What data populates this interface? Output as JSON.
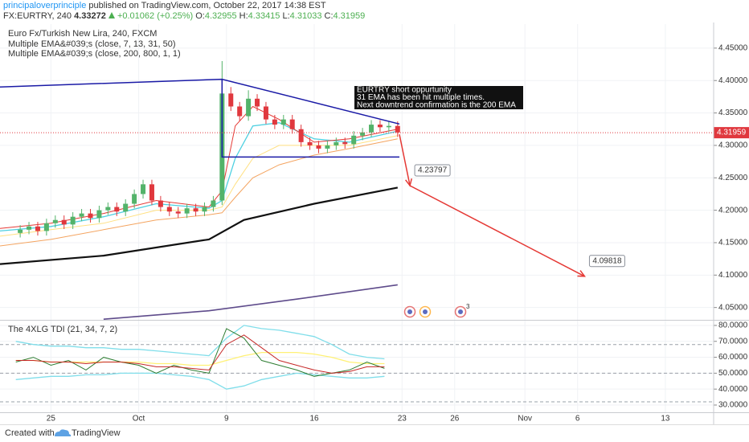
{
  "header": {
    "author": "principaloverprinciple",
    "published": "published on TradingView.com, October 22, 2017 14:38 EST",
    "symbol": "FX:EURTRY, 240",
    "price": "4.33272",
    "change": "+0.01062 (+0.25%)",
    "ohlc": [
      {
        "label": "O:",
        "value": 4.32955
      },
      {
        "label": "H:",
        "value": 4.33415
      },
      {
        "label": "L:",
        "value": 4.31033
      },
      {
        "label": "C:",
        "value": 4.31959
      }
    ]
  },
  "chart_data": [
    {
      "type": "candlestick",
      "title": "Euro Fx/Turkish New Lira, 240, FXCM",
      "legend": [
        "Multiple EMA&#039;s (close, 7, 13, 31, 50)",
        "Multiple EMA&#039;s (close, 200, 800, 1, 1)"
      ],
      "xlim": [
        -2.9,
        37.75
      ],
      "xticks": [
        {
          "value": 0,
          "label": "25"
        },
        {
          "value": 5,
          "label": "Oct"
        },
        {
          "value": 10,
          "label": "9"
        },
        {
          "value": 15,
          "label": "16"
        },
        {
          "value": 20,
          "label": "23"
        },
        {
          "value": 23,
          "label": "26"
        },
        {
          "value": 27,
          "label": "Nov"
        },
        {
          "value": 30,
          "label": "6"
        },
        {
          "value": 35,
          "label": "13"
        }
      ],
      "ylim": [
        4.031,
        4.487
      ],
      "yticks": [
        {
          "value": 4.05,
          "label": "4.05000"
        },
        {
          "value": 4.1,
          "label": "4.10000"
        },
        {
          "value": 4.15,
          "label": "4.15000"
        },
        {
          "value": 4.2,
          "label": "4.20000"
        },
        {
          "value": 4.25,
          "label": "4.25000"
        },
        {
          "value": 4.3,
          "label": "4.30000"
        },
        {
          "value": 4.35,
          "label": "4.35000"
        },
        {
          "value": 4.4,
          "label": "4.40000"
        },
        {
          "value": 4.45,
          "label": "4.45000"
        }
      ],
      "grid": true,
      "candle_colors": {
        "up": "#53b36a",
        "down": "#e0383e"
      },
      "x": [
        -1.75,
        -1.25,
        -0.75,
        -0.25,
        0.25,
        0.75,
        1.25,
        1.75,
        2.25,
        2.75,
        3.25,
        3.75,
        4.25,
        4.75,
        5.25,
        5.75,
        6.25,
        6.75,
        7.25,
        7.75,
        8.25,
        8.75,
        9.25,
        9.75,
        10.25,
        10.75,
        11.25,
        11.75,
        12.25,
        12.75,
        13.25,
        13.75,
        14.25,
        14.75,
        15.25,
        15.75,
        16.25,
        16.75,
        17.25,
        17.75,
        18.25,
        18.75,
        19.25,
        19.75
      ],
      "open": [
        4.165,
        4.17,
        4.175,
        4.168,
        4.18,
        4.185,
        4.178,
        4.19,
        4.195,
        4.188,
        4.2,
        4.205,
        4.198,
        4.21,
        4.225,
        4.24,
        4.215,
        4.205,
        4.198,
        4.195,
        4.203,
        4.198,
        4.205,
        4.215,
        4.38,
        4.36,
        4.345,
        4.372,
        4.36,
        4.34,
        4.332,
        4.34,
        4.325,
        4.305,
        4.3,
        4.295,
        4.3,
        4.305,
        4.302,
        4.315,
        4.32,
        4.332,
        4.328,
        4.33
      ],
      "high": [
        4.177,
        4.182,
        4.182,
        4.187,
        4.192,
        4.192,
        4.197,
        4.202,
        4.202,
        4.207,
        4.212,
        4.212,
        4.217,
        4.232,
        4.247,
        4.247,
        4.222,
        4.212,
        4.205,
        4.21,
        4.21,
        4.212,
        4.222,
        4.43,
        4.39,
        4.367,
        4.385,
        4.379,
        4.367,
        4.347,
        4.347,
        4.347,
        4.332,
        4.312,
        4.307,
        4.307,
        4.312,
        4.312,
        4.322,
        4.327,
        4.339,
        4.339,
        4.337,
        4.337
      ],
      "low": [
        4.158,
        4.163,
        4.161,
        4.161,
        4.173,
        4.171,
        4.171,
        4.183,
        4.181,
        4.181,
        4.193,
        4.191,
        4.191,
        4.203,
        4.218,
        4.208,
        4.198,
        4.191,
        4.188,
        4.188,
        4.191,
        4.191,
        4.198,
        4.208,
        4.353,
        4.338,
        4.338,
        4.353,
        4.333,
        4.325,
        4.325,
        4.318,
        4.298,
        4.293,
        4.288,
        4.288,
        4.293,
        4.295,
        4.295,
        4.308,
        4.313,
        4.321,
        4.321,
        4.313
      ],
      "close": [
        4.17,
        4.175,
        4.168,
        4.18,
        4.185,
        4.178,
        4.19,
        4.195,
        4.188,
        4.2,
        4.205,
        4.198,
        4.21,
        4.225,
        4.24,
        4.215,
        4.205,
        4.198,
        4.195,
        4.203,
        4.198,
        4.205,
        4.215,
        4.38,
        4.36,
        4.345,
        4.372,
        4.36,
        4.34,
        4.332,
        4.34,
        4.325,
        4.305,
        4.3,
        4.295,
        4.3,
        4.305,
        4.302,
        4.315,
        4.32,
        4.332,
        4.328,
        4.33,
        4.32
      ],
      "series": [
        {
          "color": "#f4a460",
          "width": 1,
          "x": [
            -2.9,
            0,
            3,
            6,
            9,
            9.75,
            10.5,
            11.5,
            13,
            15,
            17,
            19.75
          ],
          "values": [
            4.145,
            4.155,
            4.17,
            4.185,
            4.193,
            4.196,
            4.22,
            4.25,
            4.27,
            4.285,
            4.295,
            4.31
          ]
        },
        {
          "color": "#ffe082",
          "width": 1,
          "x": [
            -2.9,
            0,
            3,
            6,
            9,
            9.75,
            10.5,
            11.5,
            13,
            15,
            17,
            19.75
          ],
          "values": [
            4.16,
            4.17,
            4.18,
            4.2,
            4.2,
            4.205,
            4.24,
            4.28,
            4.3,
            4.3,
            4.3,
            4.315
          ]
        },
        {
          "color": "#4dd0e1",
          "width": 1.3,
          "x": [
            -2.9,
            0,
            3,
            6,
            9,
            9.75,
            10.5,
            11.5,
            13,
            15,
            17,
            19.75
          ],
          "values": [
            4.168,
            4.175,
            4.19,
            4.21,
            4.203,
            4.215,
            4.28,
            4.33,
            4.335,
            4.31,
            4.305,
            4.322
          ]
        },
        {
          "color": "#e53935",
          "width": 1,
          "x": [
            -2.9,
            0,
            3,
            6,
            9,
            9.75,
            10.5,
            11.5,
            13,
            15,
            17,
            19.75
          ],
          "values": [
            4.172,
            4.18,
            4.195,
            4.215,
            4.205,
            4.23,
            4.33,
            4.36,
            4.34,
            4.305,
            4.31,
            4.325
          ]
        },
        {
          "color": "#111111",
          "width": 2.2,
          "x": [
            -2.9,
            3,
            9,
            11,
            15,
            19.75
          ],
          "values": [
            4.117,
            4.13,
            4.155,
            4.185,
            4.21,
            4.235
          ]
        },
        {
          "color": "#5e4b8b",
          "width": 1.6,
          "x": [
            3,
            9,
            14,
            19.75
          ],
          "values": [
            4.032,
            4.045,
            4.063,
            4.085
          ]
        }
      ],
      "drawings": [
        {
          "color": "#1a1aa6",
          "x": [
            -2.9,
            9.75,
            19.85
          ],
          "y": [
            4.39,
            4.402,
            4.333
          ]
        },
        {
          "color": "#1a1aa6",
          "x": [
            9.75,
            9.75,
            19.85
          ],
          "y": [
            4.402,
            4.282,
            4.282
          ]
        },
        {
          "color": "#e53935",
          "arrow": true,
          "x": [
            19.85,
            20.45,
            30.4
          ],
          "y": [
            4.317,
            4.23797,
            4.09818
          ]
        }
      ],
      "target_labels": [
        {
          "drawing": 2,
          "point": 1
        },
        {
          "drawing": 2,
          "point": 2
        }
      ],
      "note": [
        "EURTRY short oppurtunity",
        "31 EMA has been hit multiple times.",
        "Next downtrend confirmation is the 200 EMA"
      ],
      "last_price": 4.31959,
      "event_badge": 3
    },
    {
      "type": "line",
      "title": "The 4XLG TDI (21, 34, 7, 2)",
      "ylim": [
        25.45,
        83
      ],
      "yticks": [
        {
          "value": 30,
          "label": "30.0000"
        },
        {
          "value": 40,
          "label": "40.0000"
        },
        {
          "value": 50,
          "label": "50.0000"
        },
        {
          "value": 60,
          "label": "60.0000"
        },
        {
          "value": 70,
          "label": "70.0000"
        },
        {
          "value": 80,
          "label": "80.0000"
        }
      ],
      "grid": true,
      "levels": [
        68,
        50,
        32
      ],
      "x": [
        -2,
        -1,
        0,
        1,
        2,
        3,
        4,
        5,
        6,
        7,
        8,
        9,
        10,
        11,
        12,
        13,
        14,
        15,
        16,
        17,
        18,
        19
      ],
      "series": [
        {
          "color": "#80deea",
          "width": 1.3,
          "values": [
            70,
            68,
            67,
            67,
            66,
            66,
            65,
            65,
            64,
            63,
            62,
            61,
            72,
            80,
            78,
            77,
            75,
            73,
            68,
            62,
            60,
            59
          ]
        },
        {
          "color": "#80deea",
          "width": 1.3,
          "values": [
            46,
            47,
            48,
            48,
            49,
            49,
            50,
            50,
            50,
            49,
            48,
            46,
            40,
            42,
            46,
            48,
            50,
            49,
            48,
            47,
            47,
            48
          ]
        },
        {
          "color": "#fff176",
          "width": 1.3,
          "values": [
            58,
            58,
            57,
            57,
            57,
            57,
            57,
            57,
            56,
            56,
            55,
            55,
            58,
            61,
            63,
            63,
            63,
            62,
            60,
            57,
            56,
            56
          ]
        },
        {
          "color": "#2e7d32",
          "width": 1,
          "values": [
            57,
            60,
            55,
            58,
            52,
            60,
            57,
            55,
            50,
            55,
            52,
            50,
            78,
            72,
            58,
            55,
            52,
            48,
            50,
            52,
            57,
            53
          ]
        },
        {
          "color": "#c62828",
          "width": 1,
          "values": [
            58,
            58,
            57,
            57,
            56,
            57,
            57,
            56,
            54,
            54,
            53,
            52,
            68,
            74,
            66,
            58,
            55,
            52,
            50,
            51,
            54,
            54
          ]
        }
      ]
    }
  ],
  "footer": {
    "created": "Created with",
    "brand": "TradingView"
  }
}
